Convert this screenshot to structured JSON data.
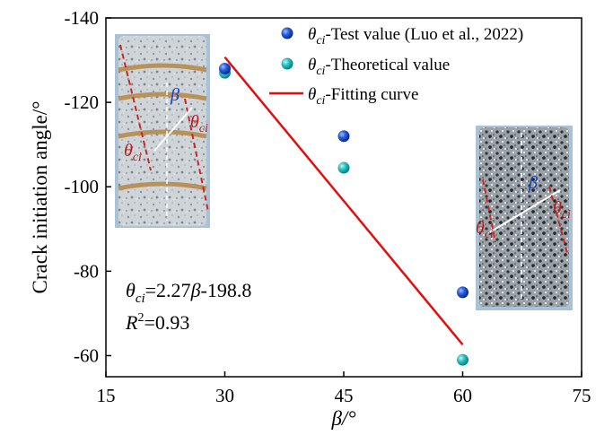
{
  "chart_data": {
    "type": "scatter",
    "title": "",
    "xlabel": "β/°",
    "ylabel": "Crack initiation angle/°",
    "xlim": [
      15,
      75
    ],
    "ylim": [
      -55,
      -140
    ],
    "xticks": [
      15,
      30,
      45,
      60,
      75
    ],
    "yticks": [
      -140,
      -120,
      -100,
      -80,
      -60
    ],
    "xtick_labels": [
      "15",
      "30",
      "45",
      "60",
      "75"
    ],
    "ytick_labels": [
      "-140",
      "-120",
      "-100",
      "-80",
      "-60"
    ],
    "series": [
      {
        "name": "θci-Test value (Luo et al., 2022)",
        "legend_sym": "θ",
        "legend_sub": "ci",
        "legend_rest": "-Test value (Luo et al., 2022)",
        "type": "scatter",
        "color": "#1f4fc8",
        "x": [
          30,
          45,
          60
        ],
        "y": [
          -128,
          -112,
          -75
        ]
      },
      {
        "name": "θci-Theoretical value",
        "legend_sym": "θ",
        "legend_sub": "ci",
        "legend_rest": "-Theoretical value",
        "type": "scatter",
        "color": "#1fb5b5",
        "x": [
          30,
          45,
          60
        ],
        "y": [
          -127,
          -104.5,
          -59
        ]
      },
      {
        "name": "θci-Fitting curve",
        "legend_sym": "θ",
        "legend_sub": "ci",
        "legend_rest": "-Fitting curve",
        "type": "line",
        "color": "#e01010",
        "x": [
          30,
          60
        ],
        "y": [
          -130.7,
          -62.6
        ]
      }
    ],
    "annotations": {
      "equation_sym": "θ",
      "equation_sub": "ci",
      "equation_rest": "=2.27",
      "equation_beta": "β",
      "equation_tail": "-198.8",
      "r2_label": "R",
      "r2_sup": "2",
      "r2_value": "=0.93"
    },
    "photo_labels": {
      "beta": "β",
      "theta": "θ",
      "sub": "ci"
    }
  }
}
